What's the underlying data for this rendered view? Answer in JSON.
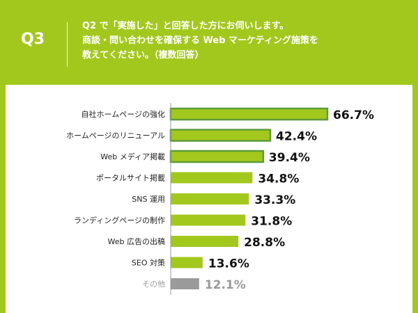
{
  "header": {
    "q_label": "Q3",
    "question_lines": [
      "Q2 で「実施した」と回答した方にお伺いします。",
      "商談・問い合わせを確保する Web マーケティング施策を",
      "教えてください。（複数回答）"
    ]
  },
  "colors": {
    "background": "#a3c81d",
    "bar": "#a3c81d",
    "bar_highlight_border": "#5d9b3a",
    "bar_other": "#9a9a9a",
    "label_text": "#222222",
    "value_text": "#111111",
    "value_other_text": "#9a9a9a",
    "axis": "#9a9a9a"
  },
  "chart_data": {
    "type": "bar",
    "orientation": "horizontal",
    "categories": [
      "自社ホームページの強化",
      "ホームページのリニューアル",
      "Web メディア掲載",
      "ポータルサイト掲載",
      "SNS 運用",
      "ランディングページの制作",
      "Web 広告の出稿",
      "SEO 対策",
      "その他"
    ],
    "values": [
      66.7,
      42.4,
      39.4,
      34.8,
      33.3,
      31.8,
      28.8,
      13.6,
      12.1
    ],
    "value_labels": [
      "66.7%",
      "42.4%",
      "39.4%",
      "34.8%",
      "33.3%",
      "31.8%",
      "28.8%",
      "13.6%",
      "12.1%"
    ],
    "highlighted": [
      true,
      true,
      true,
      false,
      false,
      false,
      false,
      false,
      false
    ],
    "other": [
      false,
      false,
      false,
      false,
      false,
      false,
      false,
      false,
      true
    ],
    "xlim": [
      0,
      66.7
    ],
    "grid": false
  }
}
